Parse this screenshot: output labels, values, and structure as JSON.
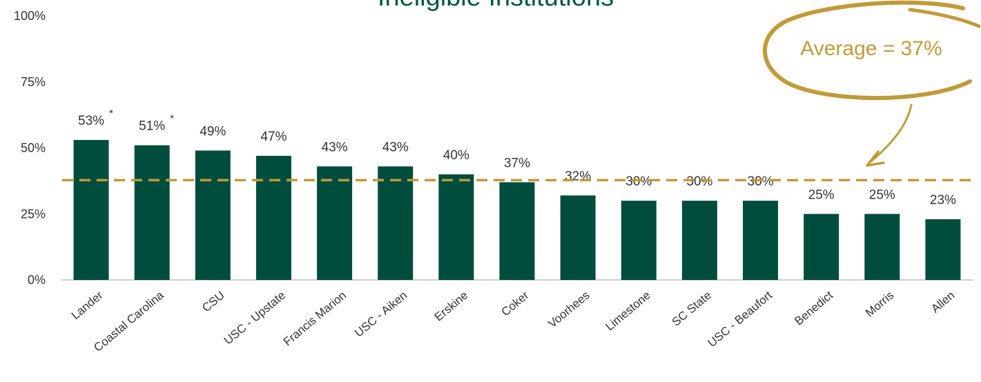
{
  "chart_data": {
    "type": "bar",
    "title": "Ineligible Institutions",
    "categories": [
      "Lander",
      "Coastal Carolina",
      "CSU",
      "USC - Upstate",
      "Francis Marion",
      "USC - Aiken",
      "Erskine",
      "Coker",
      "Voorhees",
      "Limestone",
      "SC State",
      "USC - Beaufort",
      "Benedict",
      "Morris",
      "Allen"
    ],
    "values": [
      53,
      51,
      49,
      47,
      43,
      43,
      40,
      37,
      32,
      30,
      30,
      30,
      25,
      25,
      23
    ],
    "data_labels": [
      "53%",
      "51%",
      "49%",
      "47%",
      "43%",
      "43%",
      "40%",
      "37%",
      "32%",
      "30%",
      "30%",
      "30%",
      "25%",
      "25%",
      "23%"
    ],
    "footnote_marks": [
      "*",
      "*",
      "",
      "",
      "",
      "",
      "",
      "",
      "",
      "",
      "",
      "",
      "",
      "",
      ""
    ],
    "ylim": [
      0,
      100
    ],
    "yticks": [
      0,
      25,
      50,
      75,
      100
    ],
    "ytick_labels": [
      "0%",
      "25%",
      "50%",
      "75%",
      "100%"
    ],
    "average": {
      "value": 37,
      "label": "Average = 37%"
    },
    "grid": false,
    "legend": "none",
    "colors": {
      "bar": "#004D3E",
      "title": "#00573F",
      "average": "#BF9B3A",
      "text": "#333333",
      "axis": "#BFBFBF"
    }
  }
}
